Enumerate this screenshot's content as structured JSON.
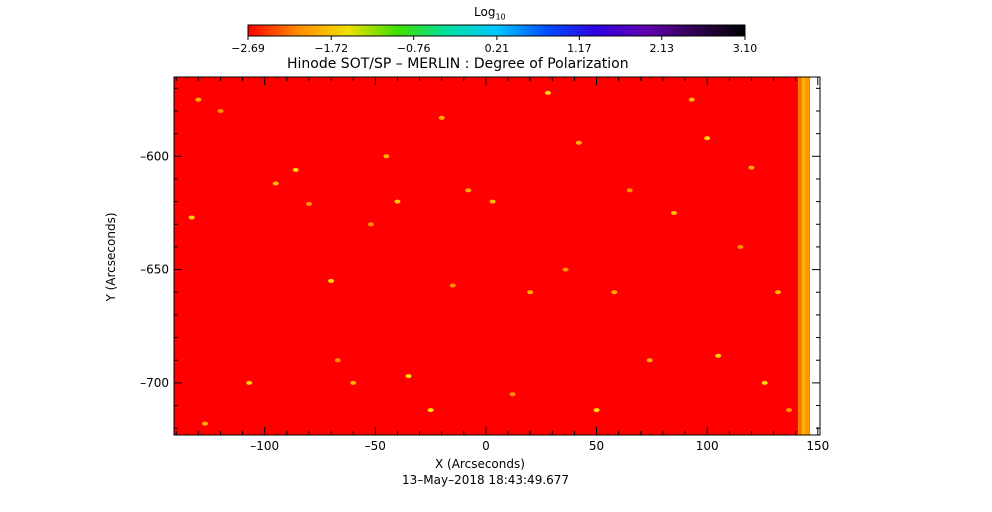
{
  "chart_data": {
    "type": "heatmap",
    "title": "Hinode SOT/SP – MERLIN : Degree of Polarization",
    "xlabel": "X (Arcseconds)",
    "ylabel": "Y (Arcseconds)",
    "timestamp": "13–May–2018 18:43:49.677",
    "xlim": [
      -141,
      151
    ],
    "ylim": [
      -723,
      -565
    ],
    "x_ticks": [
      -100,
      -50,
      0,
      50,
      100,
      150
    ],
    "x_tick_labels": [
      "–100",
      "–50",
      "0",
      "50",
      "100",
      "150"
    ],
    "y_ticks": [
      -700,
      -650,
      -600
    ],
    "y_tick_labels": [
      "–700",
      "–650",
      "–600"
    ],
    "colorbar": {
      "label_base": "Log",
      "label_sub": "10",
      "scale": "log10",
      "range": [
        -2.69,
        3.1
      ],
      "ticks": [
        -2.69,
        -1.72,
        -0.76,
        0.21,
        1.17,
        2.13,
        3.1
      ],
      "tick_labels": [
        "−2.69",
        "−1.72",
        "−0.76",
        "0.21",
        "1.17",
        "2.13",
        "3.10"
      ],
      "colors": [
        "#ff0000",
        "#ff8c00",
        "#f0e000",
        "#40e000",
        "#00e0a0",
        "#00c8ff",
        "#0050ff",
        "#3000e0",
        "#6000b0",
        "#300050",
        "#000000"
      ]
    },
    "background_color": "#ff0000",
    "features": [
      {
        "x": -133,
        "y": -627,
        "color": "#ffd000"
      },
      {
        "x": -130,
        "y": -575,
        "color": "#ffb000"
      },
      {
        "x": -120,
        "y": -580,
        "color": "#ff9000"
      },
      {
        "x": -127,
        "y": -718,
        "color": "#ffb000"
      },
      {
        "x": -107,
        "y": -700,
        "color": "#ffd000"
      },
      {
        "x": -95,
        "y": -612,
        "color": "#ffc000"
      },
      {
        "x": -86,
        "y": -606,
        "color": "#ffd000"
      },
      {
        "x": -80,
        "y": -621,
        "color": "#ff9000"
      },
      {
        "x": -70,
        "y": -655,
        "color": "#ffe000"
      },
      {
        "x": -67,
        "y": -690,
        "color": "#ff9000"
      },
      {
        "x": -60,
        "y": -700,
        "color": "#ffb000"
      },
      {
        "x": -52,
        "y": -630,
        "color": "#ff9000"
      },
      {
        "x": -45,
        "y": -600,
        "color": "#ffb000"
      },
      {
        "x": -40,
        "y": -620,
        "color": "#ffd000"
      },
      {
        "x": -35,
        "y": -697,
        "color": "#ffe000"
      },
      {
        "x": -25,
        "y": -712,
        "color": "#ffe000"
      },
      {
        "x": -20,
        "y": -583,
        "color": "#ffb000"
      },
      {
        "x": -15,
        "y": -657,
        "color": "#ff9000"
      },
      {
        "x": -8,
        "y": -615,
        "color": "#ffb000"
      },
      {
        "x": 3,
        "y": -620,
        "color": "#ffc000"
      },
      {
        "x": 12,
        "y": -705,
        "color": "#ff9000"
      },
      {
        "x": 20,
        "y": -660,
        "color": "#ffb000"
      },
      {
        "x": 28,
        "y": -572,
        "color": "#ffd000"
      },
      {
        "x": 36,
        "y": -650,
        "color": "#ff9000"
      },
      {
        "x": 42,
        "y": -594,
        "color": "#ffb000"
      },
      {
        "x": 50,
        "y": -712,
        "color": "#ffe000"
      },
      {
        "x": 58,
        "y": -660,
        "color": "#ffb000"
      },
      {
        "x": 65,
        "y": -615,
        "color": "#ff9000"
      },
      {
        "x": 74,
        "y": -690,
        "color": "#ffb000"
      },
      {
        "x": 85,
        "y": -625,
        "color": "#ffc000"
      },
      {
        "x": 93,
        "y": -575,
        "color": "#ffb000"
      },
      {
        "x": 100,
        "y": -592,
        "color": "#ffd000"
      },
      {
        "x": 105,
        "y": -688,
        "color": "#ffd000"
      },
      {
        "x": 115,
        "y": -640,
        "color": "#ff9000"
      },
      {
        "x": 120,
        "y": -605,
        "color": "#ffb000"
      },
      {
        "x": 126,
        "y": -700,
        "color": "#ffe000"
      },
      {
        "x": 132,
        "y": -660,
        "color": "#ffb000"
      },
      {
        "x": 137,
        "y": -712,
        "color": "#ff9000"
      }
    ],
    "edge_band": {
      "x_from": 141,
      "x_to": 150,
      "colors": [
        "#ff9000",
        "#ffd000",
        "#ffb000",
        "#ff8000",
        "#ffe000"
      ]
    }
  }
}
